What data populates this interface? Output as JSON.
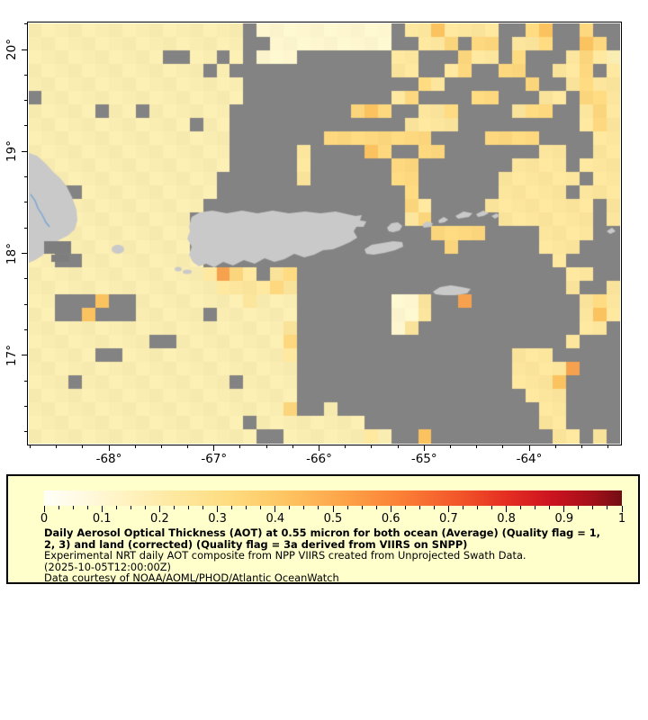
{
  "map": {
    "palette": {
      "a": "#FAEDB2",
      "w": "#FDF6CE",
      "b": "#FCE59C",
      "c": "#FDD87E",
      "d": "#FBC260",
      "e": "#F5A14E",
      "G": "#838383"
    },
    "land_color": "#C9C9C9",
    "land_nodata_color": "#7E7E7E",
    "river_color": "#77A5D6",
    "grid_cols": 44,
    "grid_rows_count": 31,
    "grid_rows": [
      "aaaaaaaaaaaaaaaaGwwwwwwwwwwGbbdbbbbGGcdGGcGG",
      "aaaaaaaaaaaaaaaaGGwwwwwwwwwGGbbcGccGbbcGGdcG",
      "aaaaaaaaaaGGaaGaGwwwGGGGGGGbbGGGcbbGcGGGbcba",
      "aaaaaaaaaaaaaGaGGGGGGGGGGGGbbGGbcGGccGGbbcGb",
      "aaaaaaaaaaaaaaaaGGGGGGGGGGGGGcbGGGGGGcGGbcbb",
      "Gaaaaaaaaaaaaaa GGGGGGGGGGGbcGGGGccGGGbbGccb",
      "aaaaaGaaGaaaaaaGGGGGGGGGcdcGGbbcGGGGbccGGbcb",
      "aaaaaaaaaaaaGaaGGGGGGGGGGGGGbbbbGGGGGGGGGbcb",
      "aaaaaaaaaaaaaaaGGGGGGGccccccccGGGGccccGGGGbb",
      "aaaaaaaaaaaaaaaGGGGGbGGGGdcGGccGGGGGGGbbGGbb",
      "aaaaaaaaaaaaaaaGGGGGbGGGGGGccGGGGGGGbbbbGbbb",
      "aaaaaaaaaaaaaaGGGGGGbGGGGGGccGGGGGGbbbbbbGbb",
      "aaGGaaaaaaaaaaGGGGGGGGGGGGGGcGGGGGGbbbbbGbbb",
      "aaaaaaaaaaaaaGGGGGGGGGGGGGGGcbGGGGbbbbbbbbGb",
      "aaaaaaaaaaaaGGGGGGGGGGGGGGGGbcGGGGGbbbbbbbGb",
      "GGaaaaaaaaaaGGGGGGGGGGGGGGGGGGccccGGGGbbbbGG",
      "GGaaaaaaaaaaGGGGGGGGGGGGGGGGGGGcGGGGGGbbbGGG",
      "aaGGaaaaaaaaaGGGGGGGGGGGGGGGGGGGGGGGGGGbGGGG",
      "aaaaaaaaaaaaabecbGbcGGGGGGGGGGGGGGGGGGGGbbGG",
      "aaaaaaaaaaaaaabbbbcbGGGGGGGGGGGGGGGGGGGGbGGb",
      "aaGGGdGGaaaaaaaabaaaGGGGGGGwwbGGeGGGGGGGGbcb",
      "aaGGdGGGaaaaaGaaaaaaGGGGGGGwwbGGGGGGGGGGGbdb",
      "aaaaaaaaaaaaaaaaaaabGGGGGGGwbGGGGGGGGGGGGbbG",
      "aaaaaaaaaGGaaaaaaaacGGGGGGGGGGGGGGGGGGGGbGGG",
      "aaaaaGGaaaaaaaaaaaabGGGGGGGGGGGGGGGGbbbGGGGG",
      "aaaaaaaaaaaaaaaaaaaaGGGGGGGGGGGGGGGGbbbbeGGG",
      "aaaGaaaaaaaaaaaGaaaaGGGGGGGGGGGGGGGGbbbdGGGG",
      "aaaaaaaaaaaaaaaaaaaaGGGGGGGGGGGGGGGGGbbbGGGG",
      "aaaaaaaaaaaaaaaaaaacGGaGGGGGGGGGGGGGGGbbGGGG",
      "aaaaaaaaaaaaaaaaGaaaaaaaaGGGGGGGGGGGGGbbGGGG",
      "aaaaaaaaaaaaaaaaaGGaaaaaabaGGdGGGGGGGGGbbGbG"
    ],
    "land_shapes": {
      "hispaniola": [
        [
          0,
          144
        ],
        [
          9,
          147
        ],
        [
          19,
          156
        ],
        [
          27,
          165
        ],
        [
          35,
          172
        ],
        [
          42,
          181
        ],
        [
          48,
          193
        ],
        [
          53,
          207
        ],
        [
          54,
          219
        ],
        [
          51,
          229
        ],
        [
          43,
          236
        ],
        [
          35,
          240
        ],
        [
          27,
          245
        ],
        [
          21,
          251
        ],
        [
          15,
          258
        ],
        [
          7,
          263
        ],
        [
          0,
          266
        ]
      ],
      "river": [
        [
          2,
          190
        ],
        [
          7,
          197
        ],
        [
          10,
          205
        ],
        [
          15,
          213
        ],
        [
          19,
          221
        ],
        [
          23,
          226
        ]
      ],
      "land_nodata_rects": [
        [
          17,
          242,
          30,
          14
        ],
        [
          25,
          257,
          20,
          8
        ]
      ],
      "mona_island": [
        99,
        251,
        7,
        5
      ],
      "puerto_rico": [
        [
          178,
          226
        ],
        [
          181,
          215
        ],
        [
          190,
          210
        ],
        [
          204,
          208
        ],
        [
          220,
          211
        ],
        [
          237,
          208
        ],
        [
          254,
          211
        ],
        [
          271,
          208
        ],
        [
          289,
          211
        ],
        [
          307,
          209
        ],
        [
          324,
          211
        ],
        [
          341,
          209
        ],
        [
          354,
          212
        ],
        [
          363,
          214
        ],
        [
          370,
          213
        ],
        [
          368,
          219
        ],
        [
          375,
          220
        ],
        [
          372,
          226
        ],
        [
          364,
          226
        ],
        [
          361,
          231
        ],
        [
          365,
          238
        ],
        [
          357,
          243
        ],
        [
          348,
          247
        ],
        [
          338,
          251
        ],
        [
          327,
          252
        ],
        [
          317,
          257
        ],
        [
          306,
          260
        ],
        [
          295,
          256
        ],
        [
          284,
          262
        ],
        [
          273,
          265
        ],
        [
          262,
          261
        ],
        [
          251,
          267
        ],
        [
          239,
          263
        ],
        [
          227,
          269
        ],
        [
          216,
          265
        ],
        [
          206,
          271
        ],
        [
          197,
          267
        ],
        [
          189,
          270
        ],
        [
          182,
          265
        ],
        [
          178,
          257
        ],
        [
          181,
          248
        ],
        [
          176,
          239
        ],
        [
          179,
          231
        ]
      ],
      "sw_fragments": [
        [
          166,
          273,
          4,
          2.5
        ],
        [
          176,
          276,
          5,
          2.5
        ]
      ],
      "vieques": [
        [
          373,
          251
        ],
        [
          381,
          246
        ],
        [
          393,
          244
        ],
        [
          405,
          242
        ],
        [
          415,
          243
        ],
        [
          416,
          248
        ],
        [
          407,
          252
        ],
        [
          395,
          255
        ],
        [
          383,
          257
        ],
        [
          375,
          256
        ]
      ],
      "culebra": [
        [
          398,
          227
        ],
        [
          403,
          222
        ],
        [
          410,
          221
        ],
        [
          415,
          225
        ],
        [
          412,
          230
        ],
        [
          405,
          232
        ],
        [
          400,
          231
        ]
      ],
      "virgin_islands": [
        [
          [
            437,
            224
          ],
          [
            442,
            220
          ],
          [
            449,
            222
          ],
          [
            447,
            226
          ],
          [
            439,
            227
          ]
        ],
        [
          [
            455,
            219
          ],
          [
            461,
            215
          ],
          [
            466,
            218
          ],
          [
            462,
            221
          ],
          [
            456,
            222
          ]
        ],
        [
          [
            474,
            214
          ],
          [
            483,
            209
          ],
          [
            493,
            211
          ],
          [
            489,
            215
          ],
          [
            477,
            217
          ]
        ],
        [
          [
            497,
            212
          ],
          [
            505,
            208
          ],
          [
            511,
            211
          ],
          [
            505,
            214
          ],
          [
            499,
            215
          ]
        ],
        [
          [
            514,
            214
          ],
          [
            520,
            211
          ],
          [
            523,
            214
          ],
          [
            518,
            217
          ]
        ],
        [
          [
            642,
            231
          ],
          [
            648,
            227
          ],
          [
            652,
            231
          ],
          [
            646,
            234
          ]
        ]
      ],
      "st_croix": [
        [
          449,
          298
        ],
        [
          457,
          293
        ],
        [
          469,
          291
        ],
        [
          481,
          293
        ],
        [
          491,
          295
        ],
        [
          487,
          300
        ],
        [
          474,
          302
        ],
        [
          461,
          302
        ],
        [
          452,
          301
        ]
      ]
    }
  },
  "axes": {
    "x_tick_labels": [
      "-68°",
      "-67°",
      "-66°",
      "-65°",
      "-64°"
    ],
    "y_tick_labels": [
      "20°",
      "19°",
      "18°",
      "17°"
    ]
  },
  "legend": {
    "background": "#FFFFCC",
    "colorbar": {
      "min": 0,
      "max": 1,
      "tick_labels": [
        "0",
        "0.1",
        "0.2",
        "0.3",
        "0.4",
        "0.5",
        "0.6",
        "0.7",
        "0.8",
        "0.9",
        "1"
      ],
      "gradient_stops": [
        [
          0,
          "#FFFFF8"
        ],
        [
          0.06,
          "#FFFAE4"
        ],
        [
          0.13,
          "#FFF4C5"
        ],
        [
          0.22,
          "#FEE9A2"
        ],
        [
          0.32,
          "#FEDC80"
        ],
        [
          0.42,
          "#FEC461"
        ],
        [
          0.52,
          "#FDA348"
        ],
        [
          0.62,
          "#FB7F35"
        ],
        [
          0.72,
          "#F2552A"
        ],
        [
          0.8,
          "#E52E22"
        ],
        [
          0.88,
          "#CB1320"
        ],
        [
          0.95,
          "#A31019"
        ],
        [
          1,
          "#720D14"
        ]
      ]
    },
    "title_line1": "Daily Aerosol Optical Thickness (AOT) at 0.55 micron for both ocean (Average) (Quality flag = 1,",
    "title_line2": "2, 3) and land (corrected) (Quality flag = 3a derived from VIIRS on SNPP)",
    "description": "Experimental NRT daily AOT composite from NPP VIIRS created from Unprojected Swath Data.",
    "timestamp": "(2025-10-05T12:00:00Z)",
    "courtesy": "Data courtesy of NOAA/AOML/PHOD/Atlantic OceanWatch"
  }
}
